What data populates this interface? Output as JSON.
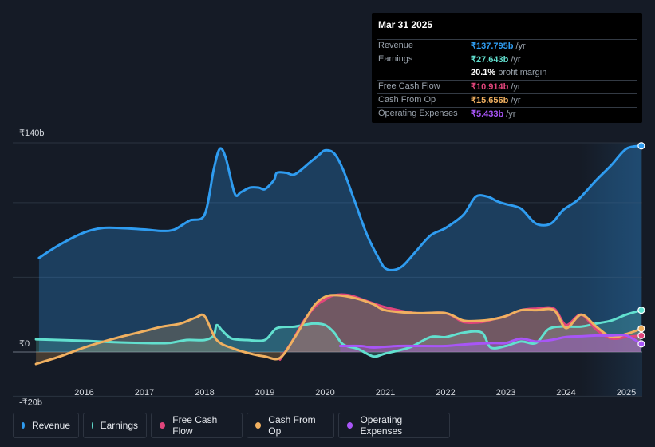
{
  "tooltip": {
    "date": "Mar 31 2025",
    "rows": [
      {
        "label": "Revenue",
        "value": "₹137.795b",
        "unit": "/yr",
        "color": "#2f9cf0"
      },
      {
        "label": "Earnings",
        "value": "₹27.643b",
        "unit": "/yr",
        "color": "#62e0cf"
      },
      {
        "label": "",
        "value": "20.1%",
        "unit": "profit margin",
        "color": "#ffffff"
      },
      {
        "label": "Free Cash Flow",
        "value": "₹10.914b",
        "unit": "/yr",
        "color": "#e0457b"
      },
      {
        "label": "Cash From Op",
        "value": "₹15.656b",
        "unit": "/yr",
        "color": "#f0b060"
      },
      {
        "label": "Operating Expenses",
        "value": "₹5.433b",
        "unit": "/yr",
        "color": "#a855f7"
      }
    ]
  },
  "legend": [
    {
      "label": "Revenue",
      "color": "#2f9cf0"
    },
    {
      "label": "Earnings",
      "color": "#62e0cf"
    },
    {
      "label": "Free Cash Flow",
      "color": "#e0457b"
    },
    {
      "label": "Cash From Op",
      "color": "#f0b060"
    },
    {
      "label": "Operating Expenses",
      "color": "#a855f7"
    }
  ],
  "chart_data": {
    "type": "area",
    "x_tick_labels": [
      "2016",
      "2017",
      "2018",
      "2019",
      "2020",
      "2021",
      "2022",
      "2023",
      "2024",
      "2025"
    ],
    "y_tick_labels": [
      {
        "value": 140,
        "label": "₹140b"
      },
      {
        "value": 0,
        "label": "₹0"
      },
      {
        "value": -20,
        "label": "-₹20b"
      }
    ],
    "ylim": [
      -20,
      140
    ],
    "xlim": [
      2015.2,
      2025.25
    ],
    "forecast_shade_start": 2024.25,
    "series": [
      {
        "name": "Revenue",
        "color": "#2f9cf0",
        "fill": true,
        "points": [
          [
            2015.25,
            63
          ],
          [
            2015.6,
            72
          ],
          [
            2016.0,
            80
          ],
          [
            2016.3,
            83
          ],
          [
            2016.6,
            83
          ],
          [
            2017.0,
            82
          ],
          [
            2017.3,
            81
          ],
          [
            2017.5,
            82
          ],
          [
            2017.75,
            88
          ],
          [
            2018.0,
            92
          ],
          [
            2018.15,
            122
          ],
          [
            2018.25,
            136
          ],
          [
            2018.35,
            130
          ],
          [
            2018.5,
            106
          ],
          [
            2018.6,
            107
          ],
          [
            2018.75,
            110
          ],
          [
            2018.9,
            110
          ],
          [
            2019.0,
            109
          ],
          [
            2019.15,
            115
          ],
          [
            2019.2,
            120
          ],
          [
            2019.35,
            120
          ],
          [
            2019.5,
            119
          ],
          [
            2019.75,
            127
          ],
          [
            2019.9,
            132
          ],
          [
            2020.0,
            135
          ],
          [
            2020.15,
            133
          ],
          [
            2020.3,
            122
          ],
          [
            2020.5,
            100
          ],
          [
            2020.7,
            78
          ],
          [
            2020.9,
            62
          ],
          [
            2021.0,
            56
          ],
          [
            2021.15,
            55
          ],
          [
            2021.3,
            58
          ],
          [
            2021.5,
            67
          ],
          [
            2021.75,
            78
          ],
          [
            2022.0,
            83
          ],
          [
            2022.3,
            92
          ],
          [
            2022.5,
            104
          ],
          [
            2022.7,
            104
          ],
          [
            2022.85,
            101
          ],
          [
            2023.0,
            99
          ],
          [
            2023.25,
            96
          ],
          [
            2023.5,
            86
          ],
          [
            2023.75,
            86
          ],
          [
            2023.95,
            95
          ],
          [
            2024.2,
            102
          ],
          [
            2024.5,
            115
          ],
          [
            2024.75,
            125
          ],
          [
            2025.0,
            136
          ],
          [
            2025.25,
            138
          ]
        ]
      },
      {
        "name": "Earnings",
        "color": "#62e0cf",
        "fill": true,
        "points": [
          [
            2015.2,
            8.5
          ],
          [
            2016.0,
            7.5
          ],
          [
            2016.5,
            6.5
          ],
          [
            2017.0,
            6
          ],
          [
            2017.4,
            6
          ],
          [
            2017.7,
            8
          ],
          [
            2018.0,
            8
          ],
          [
            2018.15,
            11
          ],
          [
            2018.2,
            18
          ],
          [
            2018.3,
            14
          ],
          [
            2018.45,
            9
          ],
          [
            2018.7,
            8
          ],
          [
            2019.0,
            8
          ],
          [
            2019.2,
            16
          ],
          [
            2019.5,
            17
          ],
          [
            2019.8,
            19
          ],
          [
            2020.0,
            18
          ],
          [
            2020.15,
            13
          ],
          [
            2020.3,
            5
          ],
          [
            2020.55,
            2
          ],
          [
            2020.8,
            -3
          ],
          [
            2021.0,
            -1
          ],
          [
            2021.4,
            3
          ],
          [
            2021.75,
            10
          ],
          [
            2022.0,
            10
          ],
          [
            2022.3,
            13
          ],
          [
            2022.6,
            13
          ],
          [
            2022.75,
            3
          ],
          [
            2023.0,
            4
          ],
          [
            2023.25,
            7
          ],
          [
            2023.5,
            6
          ],
          [
            2023.7,
            15
          ],
          [
            2023.9,
            17
          ],
          [
            2024.25,
            17
          ],
          [
            2024.5,
            19
          ],
          [
            2024.75,
            21
          ],
          [
            2025.0,
            25
          ],
          [
            2025.25,
            28
          ]
        ]
      },
      {
        "name": "Free Cash Flow",
        "color": "#e0457b",
        "fill": true,
        "points": [
          [
            2019.25,
            -5
          ],
          [
            2019.45,
            7
          ],
          [
            2019.65,
            21
          ],
          [
            2019.85,
            31
          ],
          [
            2020.0,
            35
          ],
          [
            2020.15,
            38
          ],
          [
            2020.4,
            38
          ],
          [
            2020.7,
            34
          ],
          [
            2021.0,
            30
          ],
          [
            2021.5,
            26
          ],
          [
            2022.0,
            26
          ],
          [
            2022.3,
            20
          ],
          [
            2022.6,
            20
          ],
          [
            2022.8,
            22
          ],
          [
            2023.0,
            24
          ],
          [
            2023.25,
            28
          ],
          [
            2023.5,
            29
          ],
          [
            2023.8,
            29
          ],
          [
            2024.0,
            18
          ],
          [
            2024.25,
            25
          ],
          [
            2024.5,
            15
          ],
          [
            2024.75,
            9
          ],
          [
            2025.0,
            10
          ],
          [
            2025.25,
            11
          ]
        ]
      },
      {
        "name": "Cash From Op",
        "color": "#f0b060",
        "fill": true,
        "points": [
          [
            2015.2,
            -8
          ],
          [
            2015.6,
            -3
          ],
          [
            2016.0,
            3
          ],
          [
            2016.5,
            9
          ],
          [
            2017.0,
            14
          ],
          [
            2017.3,
            17
          ],
          [
            2017.6,
            19
          ],
          [
            2017.85,
            23
          ],
          [
            2018.0,
            24
          ],
          [
            2018.2,
            8
          ],
          [
            2018.5,
            2
          ],
          [
            2018.8,
            -1.5
          ],
          [
            2019.0,
            -3
          ],
          [
            2019.25,
            -4
          ],
          [
            2019.5,
            10
          ],
          [
            2019.8,
            30
          ],
          [
            2020.0,
            37
          ],
          [
            2020.2,
            38
          ],
          [
            2020.5,
            36
          ],
          [
            2020.8,
            32
          ],
          [
            2021.0,
            28
          ],
          [
            2021.5,
            26
          ],
          [
            2022.0,
            26
          ],
          [
            2022.3,
            21
          ],
          [
            2022.6,
            21
          ],
          [
            2022.8,
            22
          ],
          [
            2023.0,
            24
          ],
          [
            2023.25,
            28
          ],
          [
            2023.5,
            28
          ],
          [
            2023.8,
            28
          ],
          [
            2024.0,
            16
          ],
          [
            2024.25,
            25
          ],
          [
            2024.5,
            17
          ],
          [
            2024.75,
            10
          ],
          [
            2025.0,
            12
          ],
          [
            2025.25,
            15.6
          ]
        ]
      },
      {
        "name": "Operating Expenses",
        "color": "#a855f7",
        "fill": true,
        "points": [
          [
            2020.25,
            4
          ],
          [
            2020.6,
            4
          ],
          [
            2020.8,
            3
          ],
          [
            2021.2,
            4
          ],
          [
            2021.5,
            4
          ],
          [
            2022.0,
            4
          ],
          [
            2022.3,
            5
          ],
          [
            2022.8,
            6
          ],
          [
            2023.0,
            6
          ],
          [
            2023.25,
            9
          ],
          [
            2023.5,
            7
          ],
          [
            2023.75,
            8
          ],
          [
            2024.0,
            10
          ],
          [
            2024.25,
            10.5
          ],
          [
            2024.5,
            11
          ],
          [
            2024.75,
            11
          ],
          [
            2025.0,
            11
          ],
          [
            2025.25,
            5.4
          ]
        ]
      }
    ]
  }
}
